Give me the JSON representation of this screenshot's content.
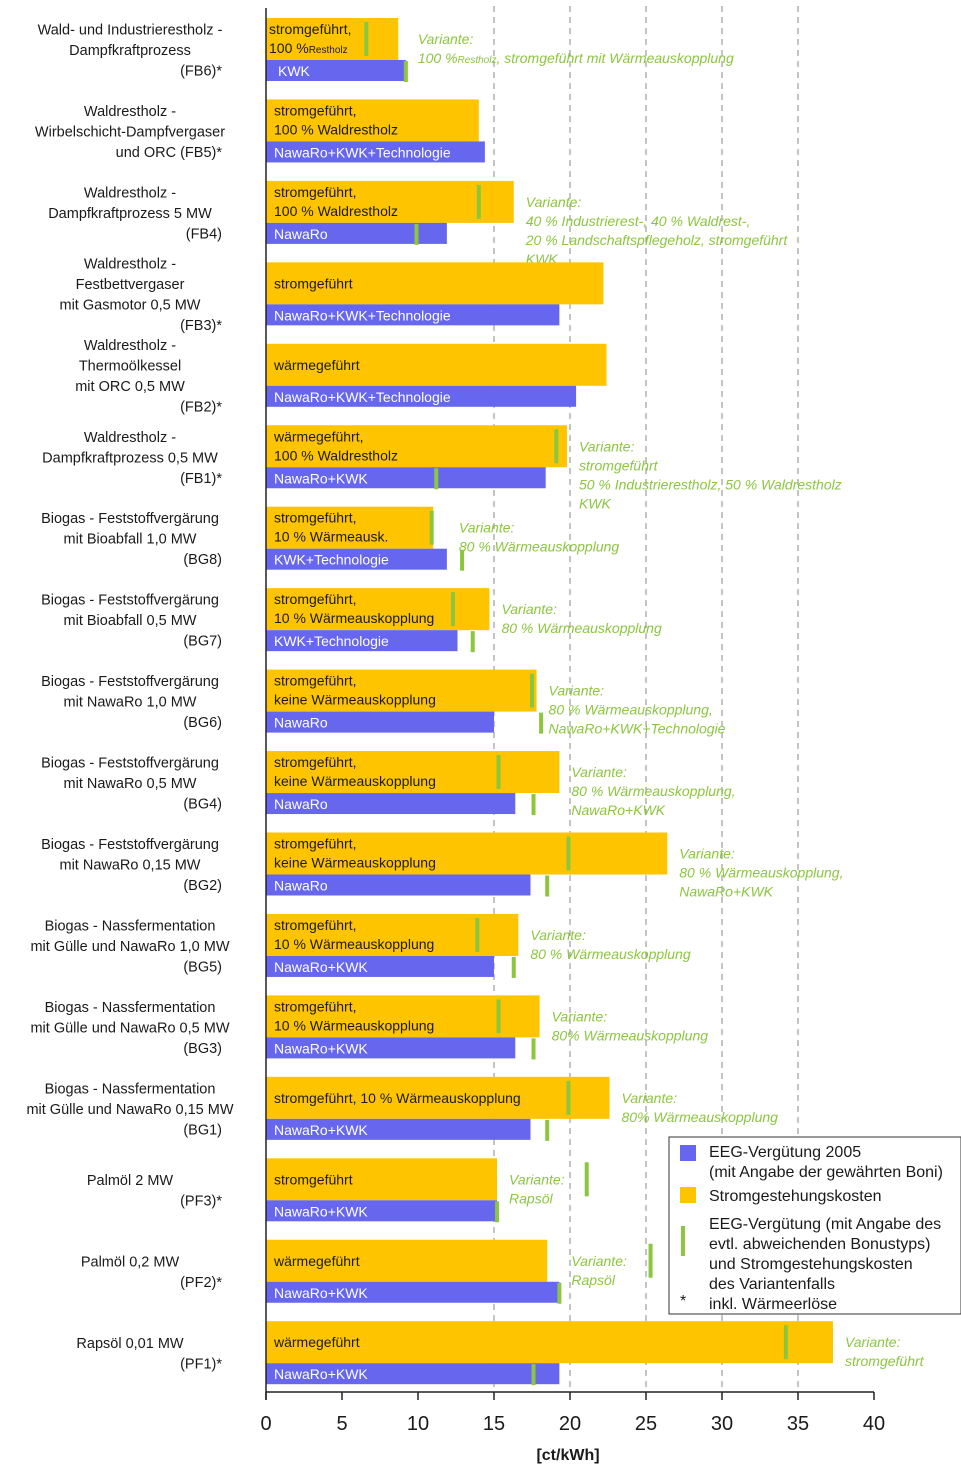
{
  "chart_data": {
    "type": "bar",
    "orientation": "horizontal",
    "xlabel": "[ct/kWh]",
    "xlim": [
      0,
      40
    ],
    "xticks": [
      0,
      5,
      10,
      15,
      20,
      25,
      30,
      35,
      40
    ],
    "grid": "vertical dashed at 15, 20, 25, 30, 35",
    "legend_placement": "bottom-right",
    "legend": [
      {
        "key": "eeg",
        "lines": [
          "EEG-Vergütung 2005",
          "(mit Angabe der gewährten Boni)"
        ]
      },
      {
        "key": "cost",
        "lines": [
          "Stromgestehungskosten"
        ]
      },
      {
        "key": "variant",
        "lines": [
          "EEG-Vergütung (mit Angabe des",
          "evtl. abweichenden Bonustyps)",
          "und Stromgestehungskosten",
          "des Variantenfalls"
        ]
      },
      {
        "key": "star",
        "symbol": "*",
        "lines": [
          "inkl. Wärmeerlöse"
        ]
      }
    ],
    "colors": {
      "eeg": "#6666ee",
      "cost": "#ffc400",
      "variant": "#8cc63f",
      "grid": "#8a8a8a"
    },
    "categories": [
      {
        "label": [
          "Wald- und Industrierestholz -",
          "Dampfkraftprozess",
          "(FB6)*"
        ],
        "cost": 8.7,
        "eeg": 9.2,
        "cost_text": [
          "stromgeführt,",
          "100 %"
        ],
        "cost_text_small": "Restholz",
        "eeg_text": "KWK",
        "var_cost": 6.6,
        "var_eeg": 9.2,
        "variant_text": [
          "Variante:",
          "100 %"
        ],
        "variant_text_small": "Restholz",
        "variant_text_rest": ", stromgeführt mit Wärmeauskopplung"
      },
      {
        "label": [
          "Waldrestholz -",
          "Wirbelschicht-Dampfvergaser",
          "und ORC    (FB5)*"
        ],
        "cost": 14.0,
        "eeg": 14.4,
        "cost_text": [
          "stromgeführt,",
          "100 % Waldrestholz"
        ],
        "eeg_text": "NawaRo+KWK+Technologie"
      },
      {
        "label": [
          "Waldrestholz -",
          "Dampfkraftprozess 5 MW",
          "(FB4)"
        ],
        "cost": 16.3,
        "eeg": 11.9,
        "cost_text": [
          "stromgeführt,",
          "100 % Waldrestholz"
        ],
        "eeg_text": "NawaRo",
        "var_cost": 14.0,
        "var_eeg": 9.9,
        "variant_text": [
          "Variante:",
          "40 % Industrierest-, 40 % Waldrest-,",
          "20 % Landschaftspflegeholz, stromgeführt",
          "KWK"
        ]
      },
      {
        "label": [
          "Waldrestholz -",
          "Festbettvergaser",
          "mit Gasmotor 0,5 MW",
          "(FB3)*"
        ],
        "cost": 22.2,
        "eeg": 19.3,
        "cost_text": [
          "stromgeführt"
        ],
        "eeg_text": "NawaRo+KWK+Technologie"
      },
      {
        "label": [
          "Waldrestholz -",
          "Thermoölkessel",
          "mit ORC 0,5 MW",
          "(FB2)*"
        ],
        "cost": 22.4,
        "eeg": 20.4,
        "cost_text": [
          "wärmegeführt"
        ],
        "eeg_text": "NawaRo+KWK+Technologie"
      },
      {
        "label": [
          "Waldrestholz -",
          "Dampfkraftprozess 0,5 MW",
          "(FB1)*"
        ],
        "cost": 19.8,
        "eeg": 18.4,
        "cost_text": [
          "wärmegeführt,",
          "100 % Waldrestholz"
        ],
        "eeg_text": "NawaRo+KWK",
        "var_cost": 19.1,
        "var_eeg": 11.2,
        "variant_text": [
          "Variante:",
          "stromgeführt",
          "50 % Industrierestholz, 50 % Waldrestholz",
          "KWK"
        ]
      },
      {
        "label": [
          "Biogas - Feststoffvergärung",
          "mit Bioabfall 1,0 MW",
          "(BG8)"
        ],
        "cost": 11.0,
        "eeg": 11.9,
        "cost_text": [
          "stromgeführt,",
          "10 % Wärmeausk."
        ],
        "eeg_text": "KWK+Technologie",
        "var_cost": 10.9,
        "var_eeg": 12.9,
        "variant_text": [
          "Variante:",
          "80 % Wärmeauskopplung"
        ]
      },
      {
        "label": [
          "Biogas - Feststoffvergärung",
          "mit Bioabfall 0,5 MW",
          "(BG7)"
        ],
        "cost": 14.7,
        "eeg": 12.6,
        "cost_text": [
          "stromgeführt,",
          "10 % Wärmeauskopplung"
        ],
        "eeg_text": "KWK+Technologie",
        "var_cost": 12.3,
        "var_eeg": 13.6,
        "variant_text": [
          "Variante:",
          "80 % Wärmeauskopplung"
        ]
      },
      {
        "label": [
          "Biogas - Feststoffvergärung",
          "mit NawaRo 1,0 MW",
          "(BG6)"
        ],
        "cost": 17.8,
        "eeg": 15.0,
        "cost_text": [
          "stromgeführt,",
          "keine Wärmeauskopplung"
        ],
        "eeg_text": "NawaRo",
        "var_cost": 17.5,
        "var_eeg": 18.1,
        "variant_text": [
          "Variante:",
          "80 % Wärmeauskopplung,",
          "NawaRo+KWK+Technologie"
        ]
      },
      {
        "label": [
          "Biogas - Feststoffvergärung",
          "mit NawaRo 0,5 MW",
          "(BG4)"
        ],
        "cost": 19.3,
        "eeg": 16.4,
        "cost_text": [
          "stromgeführt,",
          "keine Wärmeauskopplung"
        ],
        "eeg_text": "NawaRo",
        "var_cost": 15.3,
        "var_eeg": 17.6,
        "variant_text": [
          "Variante:",
          "80 % Wärmeauskopplung,",
          "NawaRo+KWK"
        ]
      },
      {
        "label": [
          "Biogas - Feststoffvergärung",
          "mit NawaRo 0,15 MW",
          "(BG2)"
        ],
        "cost": 26.4,
        "eeg": 17.4,
        "cost_text": [
          "stromgeführt,",
          "keine Wärmeauskopplung"
        ],
        "eeg_text": "NawaRo",
        "var_cost": 19.9,
        "var_eeg": 18.5,
        "variant_text": [
          "Variante:",
          "80 % Wärmeauskopplung,",
          "NawaRo+KWK"
        ]
      },
      {
        "label": [
          "Biogas - Nassfermentation",
          "mit Gülle und NawaRo 1,0 MW",
          "(BG5)"
        ],
        "cost": 16.6,
        "eeg": 15.0,
        "cost_text": [
          "stromgeführt,",
          "10 % Wärmeauskopplung"
        ],
        "eeg_text": "NawaRo+KWK",
        "var_cost": 13.9,
        "var_eeg": 16.3,
        "variant_text": [
          "Variante:",
          "80 % Wärmeauskopplung"
        ]
      },
      {
        "label": [
          "Biogas - Nassfermentation",
          "mit Gülle und NawaRo 0,5 MW",
          "(BG3)"
        ],
        "cost": 18.0,
        "eeg": 16.4,
        "cost_text": [
          "stromgeführt,",
          "10 % Wärmeauskopplung"
        ],
        "eeg_text": "NawaRo+KWK",
        "var_cost": 15.3,
        "var_eeg": 17.6,
        "variant_text": [
          "Variante:",
          "80% Wärmeauskopplung"
        ]
      },
      {
        "label": [
          "Biogas - Nassfermentation",
          "mit Gülle und NawaRo 0,15 MW",
          "(BG1)"
        ],
        "cost": 22.6,
        "eeg": 17.4,
        "cost_text": [
          "stromgeführt, 10 % Wärmeauskopplung"
        ],
        "eeg_text": "NawaRo+KWK",
        "var_cost": 19.9,
        "var_eeg": 18.5,
        "variant_text": [
          "Variante:",
          "80% Wärmeauskopplung"
        ]
      },
      {
        "label": [
          "Palmöl 2 MW",
          "(PF3)*"
        ],
        "cost": 15.2,
        "eeg": 15.2,
        "cost_text": [
          "stromgeführt"
        ],
        "eeg_text": "NawaRo+KWK",
        "var_cost": 21.1,
        "var_eeg": 15.2,
        "variant_text": [
          "Variante:",
          "Rapsöl"
        ]
      },
      {
        "label": [
          "Palmöl 0,2 MW",
          "(PF2)*"
        ],
        "cost": 18.5,
        "eeg": 19.3,
        "cost_text": [
          "wärmegeführt"
        ],
        "eeg_text": "NawaRo+KWK",
        "var_cost": 25.3,
        "var_eeg": 19.3,
        "variant_text": [
          "Variante:",
          "Rapsöl"
        ]
      },
      {
        "label": [
          "Rapsöl 0,01 MW",
          "(PF1)*"
        ],
        "cost": 37.3,
        "eeg": 19.3,
        "cost_text": [
          "wärmegeführt"
        ],
        "eeg_text": "NawaRo+KWK",
        "var_cost": 34.2,
        "var_eeg": 17.6,
        "variant_text": [
          "Variante:",
          "stromgeführt"
        ]
      }
    ]
  }
}
